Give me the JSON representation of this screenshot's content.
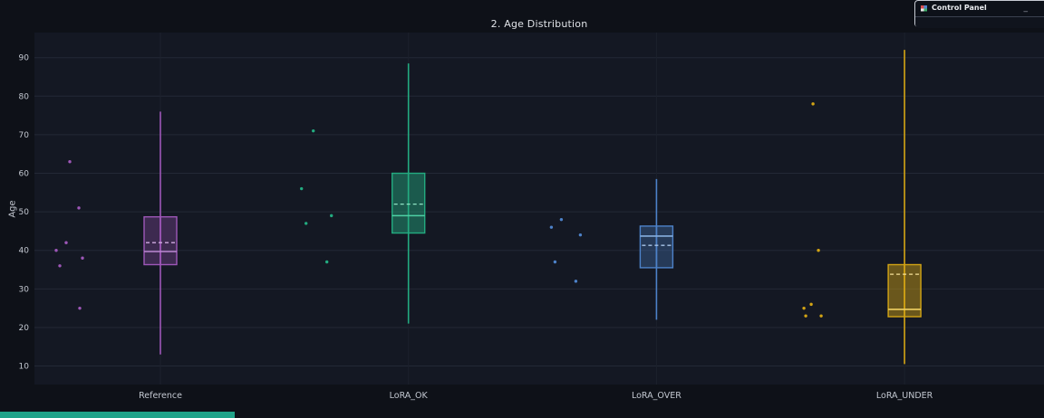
{
  "control_panel": {
    "title": "Control Panel",
    "minimize_label": "_"
  },
  "page": {
    "clipped_bar_color": "#20a389"
  },
  "chart_data": {
    "type": "box",
    "title": "2. Age Distribution",
    "ylabel": "Age",
    "ylim": [
      5.2,
      96.5
    ],
    "yticks": [
      10,
      20,
      30,
      40,
      50,
      60,
      70,
      80,
      90
    ],
    "grid": true,
    "legend": "none",
    "categories": [
      "Reference",
      "LoRA_OK",
      "LoRA_OVER",
      "LoRA_UNDER"
    ],
    "colors": {
      "figure_bg": "#0e1118",
      "plot_bg": "#141823",
      "h_grid": "#232936",
      "v_grid": "#1c212c",
      "tick_text": "#c3c8d1",
      "title_text": "#dfe2e7"
    },
    "series": [
      {
        "name": "Reference",
        "color": "#9e57b8",
        "median_color": "#bb87d2",
        "mean_color": "#d0abe0",
        "fill_opacity": 0.3,
        "whisker_low": 13,
        "q1": 36.3,
        "median": 39.7,
        "mean": 42,
        "q3": 48.7,
        "whisker_high": 76,
        "points": [
          [
            -100,
            63
          ],
          [
            -90,
            51
          ],
          [
            -104,
            42
          ],
          [
            -115,
            40
          ],
          [
            -86,
            38
          ],
          [
            -111,
            36
          ],
          [
            -89,
            25
          ]
        ]
      },
      {
        "name": "LoRA_OK",
        "color": "#23ab80",
        "median_color": "#4fd1a4",
        "mean_color": "#8fe3c4",
        "fill_opacity": 0.45,
        "whisker_low": 21,
        "q1": 44.5,
        "median": 49,
        "mean": 52,
        "q3": 60,
        "whisker_high": 88.5,
        "points": [
          [
            -105,
            71
          ],
          [
            -118,
            56
          ],
          [
            -85,
            49
          ],
          [
            -113,
            47
          ],
          [
            -90,
            37
          ]
        ]
      },
      {
        "name": "LoRA_OVER",
        "color": "#4d82c9",
        "median_color": "#86aede",
        "mean_color": "#a9c6ea",
        "fill_opacity": 0.32,
        "whisker_low": 22,
        "q1": 35.5,
        "median": 43.7,
        "mean": 41.3,
        "q3": 46.3,
        "whisker_high": 58.5,
        "points": [
          [
            -105,
            48
          ],
          [
            -116,
            46
          ],
          [
            -84,
            44
          ],
          [
            -112,
            37
          ],
          [
            -89,
            32
          ]
        ]
      },
      {
        "name": "LoRA_UNDER",
        "color": "#d3a414",
        "median_color": "#efd061",
        "mean_color": "#f7e29a",
        "fill_opacity": 0.45,
        "whisker_low": 10.5,
        "q1": 22.8,
        "median": 24.7,
        "mean": 33.8,
        "q3": 36.3,
        "whisker_high": 92,
        "points": [
          [
            -101,
            78
          ],
          [
            -95,
            40
          ],
          [
            -103,
            26
          ],
          [
            -111,
            25
          ],
          [
            -109,
            23
          ],
          [
            -92,
            23
          ]
        ]
      }
    ]
  }
}
